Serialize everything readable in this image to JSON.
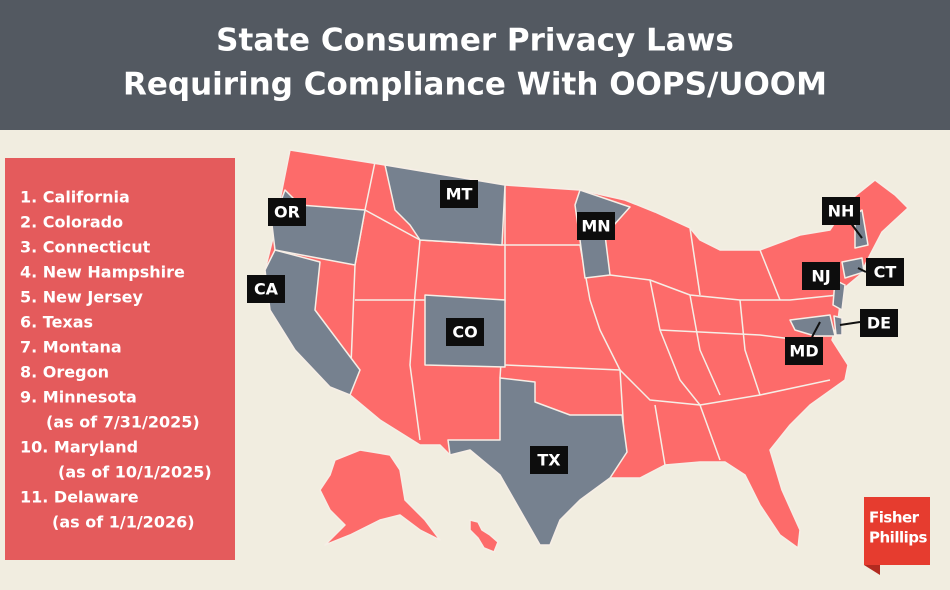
{
  "header": {
    "title_lines": [
      "State Consumer Privacy Laws",
      "Requiring Compliance With OOPS/UOOM"
    ]
  },
  "list": {
    "items": [
      {
        "name": "1. California"
      },
      {
        "name": "2. Colorado"
      },
      {
        "name": "3. Connecticut"
      },
      {
        "name": "4. New Hampshire"
      },
      {
        "name": "5. New Jersey"
      },
      {
        "name": "6. Texas"
      },
      {
        "name": "7. Montana"
      },
      {
        "name": "8. Oregon"
      },
      {
        "name": "9. Minnesota",
        "note": "(as of 7/31/2025)"
      },
      {
        "name": "10. Maryland",
        "note": "(as of 10/1/2025)"
      },
      {
        "name": "11. Delaware",
        "note": "(as of 1/1/2026)"
      }
    ]
  },
  "map": {
    "labels": [
      "OR",
      "MT",
      "MN",
      "NH",
      "CA",
      "NJ",
      "CT",
      "CO",
      "DE",
      "MD",
      "TX"
    ]
  },
  "logo": {
    "lines": [
      "Fisher",
      "Phillips"
    ]
  }
}
